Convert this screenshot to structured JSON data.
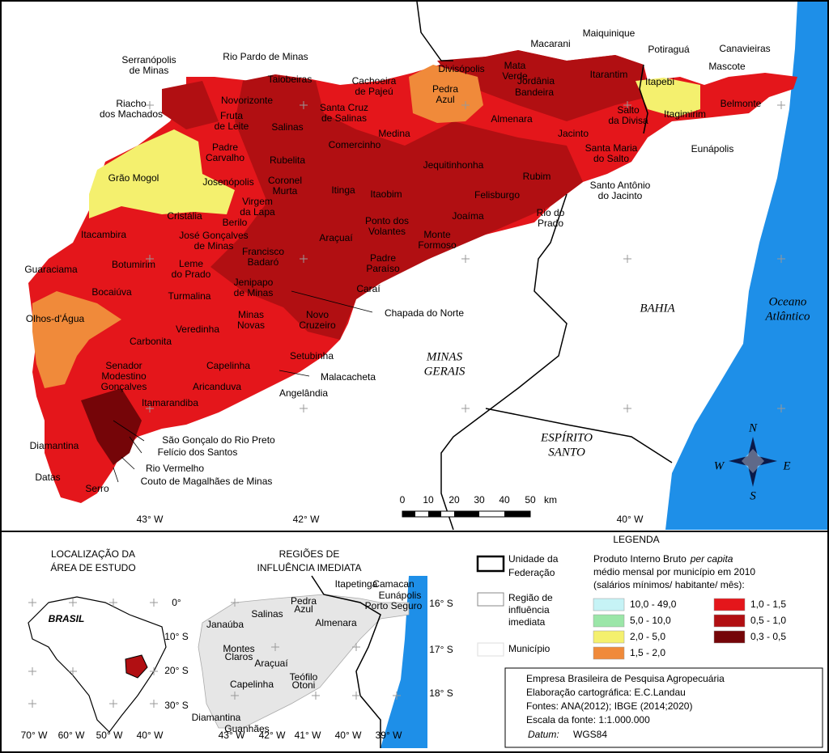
{
  "main_map": {
    "places": [
      [
        "Serranópolis",
        "de Minas"
      ],
      [
        "Rio Pardo de Minas"
      ],
      [
        "Taiobeiras"
      ],
      [
        "Cachoeira",
        "de Pajeú"
      ],
      [
        "Divisópolis"
      ],
      [
        "Mata",
        "Verde"
      ],
      [
        "Macarani"
      ],
      [
        "Maiquinique"
      ],
      [
        "Potiraguá"
      ],
      [
        "Canavieiras"
      ],
      [
        "Mascote"
      ],
      [
        "Pedra",
        "Azul"
      ],
      [
        "Jordânia"
      ],
      [
        "Bandeira"
      ],
      [
        "Itarantim"
      ],
      [
        "Itapebi"
      ],
      [
        "Belmonte"
      ],
      [
        "Riacho",
        "dos Machados"
      ],
      [
        "Novorizonte"
      ],
      [
        "Fruta",
        "de Leite"
      ],
      [
        "Santa Cruz",
        "de Salinas"
      ],
      [
        "Salinas"
      ],
      [
        "Medina"
      ],
      [
        "Almenara"
      ],
      [
        "Salto",
        "da Divisa"
      ],
      [
        "Itagimirim"
      ],
      [
        "Jacinto"
      ],
      [
        "Eunápolis"
      ],
      [
        "Padre",
        "Carvalho"
      ],
      [
        "Comercinho"
      ],
      [
        "Santa Maria",
        "do Salto"
      ],
      [
        "Rubelita"
      ],
      [
        "Jequitinhonha"
      ],
      [
        "Rubim"
      ],
      [
        "Grão Mogol"
      ],
      [
        "Josenópolis"
      ],
      [
        "Coronel",
        "Murta"
      ],
      [
        "Itinga"
      ],
      [
        "Itaobim"
      ],
      [
        "Felisburgo"
      ],
      [
        "Santo Antônio",
        "do Jacinto"
      ],
      [
        "Virgem",
        "da Lapa"
      ],
      [
        "Cristália"
      ],
      [
        "Berilo"
      ],
      [
        "Joaíma"
      ],
      [
        "Rio do",
        "Prado"
      ],
      [
        "Ponto dos",
        "Volantes"
      ],
      [
        "Itacambira"
      ],
      [
        "José Gonçalves",
        "de Minas"
      ],
      [
        "Araçuaí"
      ],
      [
        "Monte",
        "Formoso"
      ],
      [
        "Francisco",
        "Badaró"
      ],
      [
        "Padre",
        "Paraíso"
      ],
      [
        "Botumirim"
      ],
      [
        "Leme",
        "do Prado"
      ],
      [
        "Guaraciama"
      ],
      [
        "Jenipapo",
        "de Minas"
      ],
      [
        "Caraí"
      ],
      [
        "Bocaiúva"
      ],
      [
        "Turmalina"
      ],
      [
        "Chapada do Norte"
      ],
      [
        "Minas",
        "Novas"
      ],
      [
        "Novo",
        "Cruzeiro"
      ],
      [
        "Olhos-d'Água"
      ],
      [
        "Veredinha"
      ],
      [
        "Carbonita"
      ],
      [
        "Setubinha"
      ],
      [
        "Capelinha"
      ],
      [
        "Senador",
        "Modestino",
        "Gonçalves"
      ],
      [
        "Malacacheta"
      ],
      [
        "Aricanduva"
      ],
      [
        "Angelândia"
      ],
      [
        "Itamarandiba"
      ],
      [
        "São Gonçalo do Rio Preto"
      ],
      [
        "Felício dos Santos"
      ],
      [
        "Diamantina"
      ],
      [
        "Rio Vermelho"
      ],
      [
        "Couto de Magalhães de Minas"
      ],
      [
        "Datas"
      ],
      [
        "Serro"
      ]
    ],
    "regions": [
      [
        "BAHIA"
      ],
      [
        "MINAS",
        "GERAIS"
      ],
      [
        "ESPÍRITO",
        "SANTO"
      ],
      [
        "Oceano",
        "Atlântico"
      ]
    ],
    "graticule": [
      "43° W",
      "42° W",
      "40° W"
    ],
    "scale_bar": {
      "ticks": [
        "0",
        "10",
        "20",
        "30",
        "40",
        "50"
      ],
      "unit": "km"
    },
    "compass": [
      "N",
      "S",
      "E",
      "W"
    ]
  },
  "location_inset": {
    "title": [
      "LOCALIZAÇÃO DA",
      "ÁREA DE ESTUDO"
    ],
    "country": "BRASIL",
    "lat_labels": [
      "0°",
      "10° S",
      "20° S",
      "30° S"
    ],
    "lon_labels": [
      "70° W",
      "60° W",
      "50° W",
      "40° W"
    ]
  },
  "regions_inset": {
    "title": [
      "REGIÕES DE",
      "INFLUÊNCIA IMEDIATA"
    ],
    "places": [
      [
        "Janaúba"
      ],
      [
        "Salinas"
      ],
      [
        "Pedra",
        "Azul"
      ],
      [
        "Almenara"
      ],
      [
        "Montes",
        "Claros"
      ],
      [
        "Araçuaí"
      ],
      [
        "Teófilo",
        "Otoni"
      ],
      [
        "Capelinha"
      ],
      [
        "Diamantina"
      ],
      [
        "Guanhães"
      ],
      [
        "Itapetinga"
      ],
      [
        "Camacan"
      ],
      [
        "Eunápolis"
      ],
      [
        "Porto Seguro"
      ]
    ],
    "lat_labels": [
      "16° S",
      "17° S",
      "18° S"
    ],
    "lon_labels": [
      "43° W",
      "42° W",
      "41° W",
      "40° W",
      "39° W"
    ]
  },
  "legend": {
    "title": "LEGENDA",
    "boundaries": [
      [
        "Unidade da",
        "Federação"
      ],
      [
        "Região de",
        "influência",
        "imediata"
      ],
      [
        "Município"
      ]
    ],
    "variable": [
      "Produto Interno Bruto",
      "per capita",
      "médio mensal por município em 2010",
      "(salários mínimos/ habitante/ mês):"
    ],
    "classes": [
      {
        "label": "10,0 - 49,0",
        "color": "#c6f3f6"
      },
      {
        "label": "5,0 - 10,0",
        "color": "#9be6a8"
      },
      {
        "label": "2,0 - 5,0",
        "color": "#f4f06e"
      },
      {
        "label": "1,5 - 2,0",
        "color": "#f08a3a"
      },
      {
        "label": "1,0 - 1,5",
        "color": "#e4161b"
      },
      {
        "label": "0,5 - 1,0",
        "color": "#b10f12"
      },
      {
        "label": "0,3 - 0,5",
        "color": "#750508"
      }
    ]
  },
  "credits": {
    "lines": [
      "Empresa Brasileira de Pesquisa Agropecuária",
      "Elaboração cartográfica: E.C.Landau",
      "Fontes: ANA(2012); IBGE (2014;2020)",
      "Escala da fonte:  1:1.000.000"
    ],
    "datum_label": "Datum:",
    "datum": "WGS84"
  }
}
